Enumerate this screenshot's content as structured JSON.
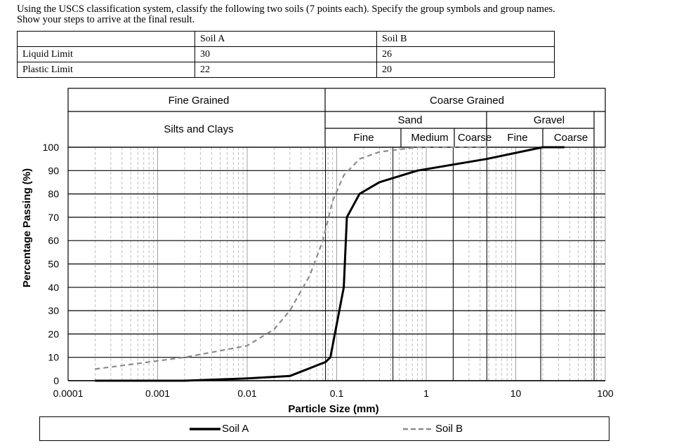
{
  "question": {
    "line1": "Using the USCS classification system, classify the following two soils (7 points each). Specify the group symbols and group names.",
    "line2": "Show your steps to arrive at the final result."
  },
  "table": {
    "headers": [
      "",
      "Soil A",
      "Soil B"
    ],
    "rows": [
      {
        "label": "Liquid Limit",
        "a": "30",
        "b": "26"
      },
      {
        "label": "Plastic Limit",
        "a": "22",
        "b": "20"
      }
    ]
  },
  "bands": {
    "fine_grained": "Fine Grained",
    "silts_clays": "Silts and Clays",
    "coarse_grained": "Coarse Grained",
    "sand": "Sand",
    "gravel": "Gravel",
    "sand_fine": "Fine",
    "sand_medium": "Medium",
    "sand_coarse": "Coarse",
    "gravel_fine": "Fine",
    "gravel_coarse": "Coarse"
  },
  "chart_data": {
    "type": "line",
    "xscale": "log",
    "xlabel": "Particle Size  (mm)",
    "ylabel": "Percentage Passing (%)",
    "xlim": [
      0.0001,
      100
    ],
    "ylim": [
      0,
      100
    ],
    "x_ticks": [
      "0.0001",
      "0.001",
      "0.01",
      "0.1",
      "1",
      "10",
      "100"
    ],
    "y_ticks": [
      "0",
      "10",
      "20",
      "30",
      "40",
      "50",
      "60",
      "70",
      "80",
      "90",
      "100"
    ],
    "boundaries_mm": {
      "silt_sand": 0.075,
      "fine_medium_sand": 0.425,
      "medium_coarse_sand": 2.0,
      "sand_gravel": 4.75,
      "fine_coarse_gravel": 19,
      "end": 75
    },
    "series": [
      {
        "name": "Soil A",
        "style": "solid",
        "x": [
          0.0002,
          0.002,
          0.01,
          0.03,
          0.075,
          0.085,
          0.12,
          0.13,
          0.18,
          0.3,
          0.8,
          4.75,
          20,
          35
        ],
        "y": [
          0,
          0,
          1,
          2,
          8,
          10,
          40,
          70,
          80,
          85,
          90,
          95,
          100,
          100
        ]
      },
      {
        "name": "Soil B",
        "style": "dashed",
        "x": [
          0.0002,
          0.002,
          0.01,
          0.02,
          0.03,
          0.05,
          0.07,
          0.09,
          0.12,
          0.18,
          0.3,
          0.8,
          4.75
        ],
        "y": [
          5,
          10,
          15,
          22,
          30,
          45,
          60,
          77,
          88,
          95,
          98,
          100,
          100
        ]
      }
    ]
  }
}
